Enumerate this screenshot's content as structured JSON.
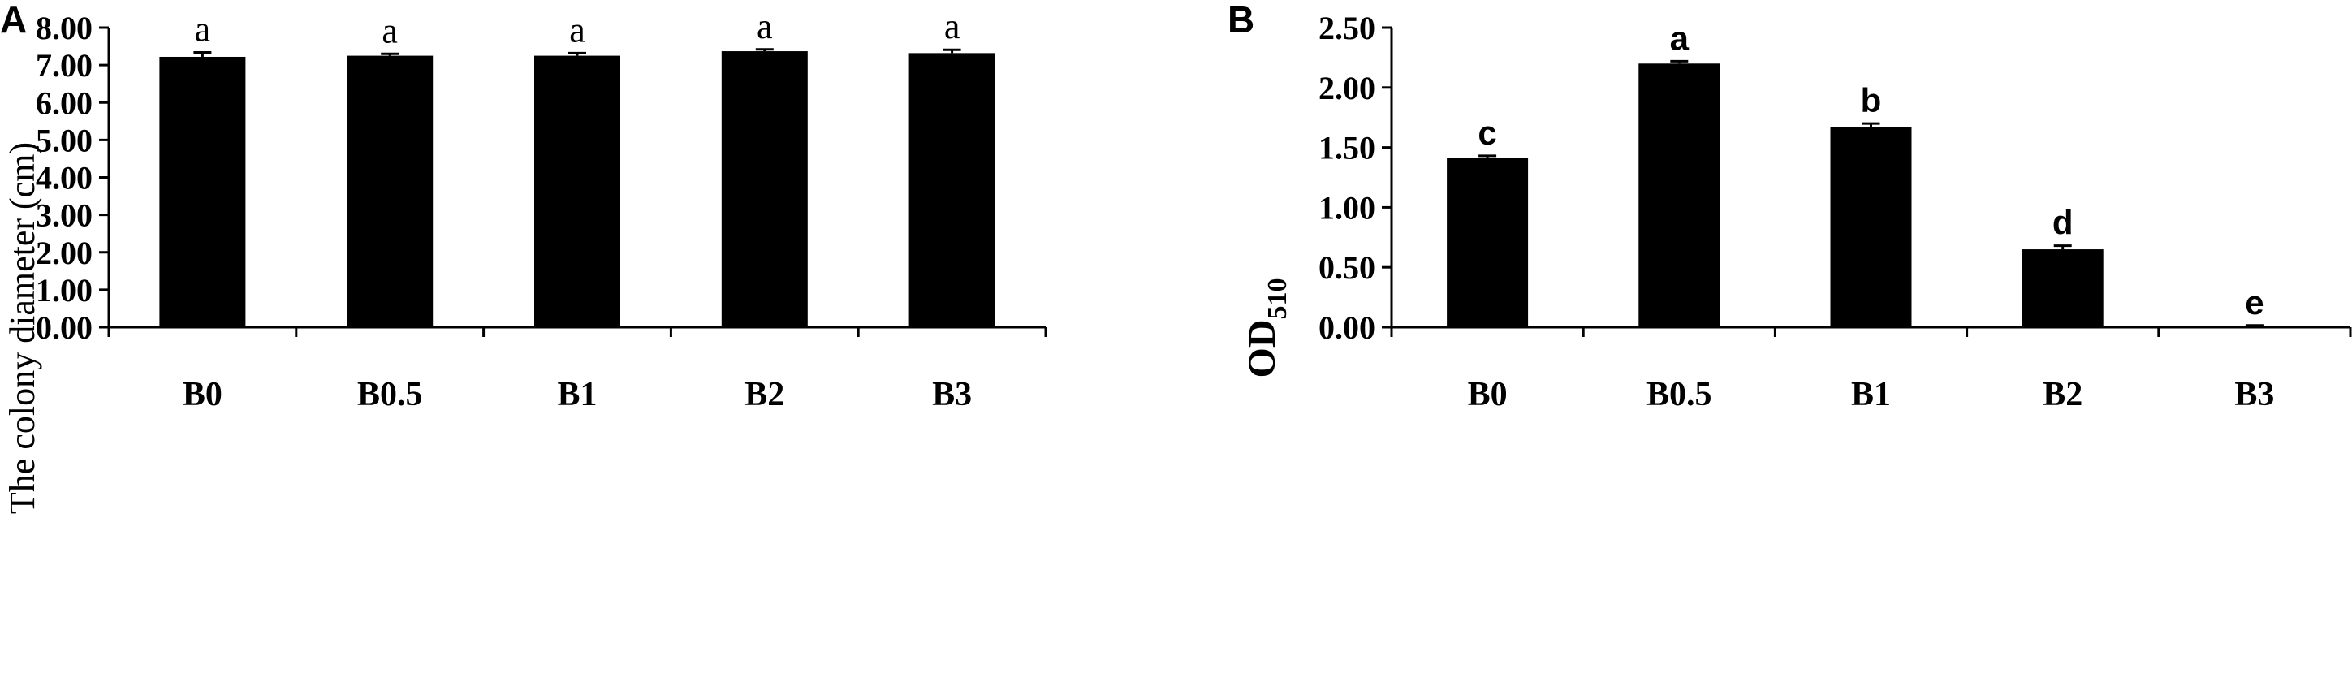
{
  "chart_data": [
    {
      "type": "bar",
      "panel": "A",
      "title": "",
      "xlabel": "",
      "ylabel": "The colony diameter (cm)",
      "ylim": [
        0,
        8
      ],
      "yticks": [
        "0.00",
        "1.00",
        "2.00",
        "3.00",
        "4.00",
        "5.00",
        "6.00",
        "7.00",
        "8.00"
      ],
      "categories": [
        "B0",
        "B0.5",
        "B1",
        "B2",
        "B3"
      ],
      "values": [
        7.22,
        7.25,
        7.25,
        7.37,
        7.32
      ],
      "errors": [
        0.12,
        0.05,
        0.07,
        0.05,
        0.09
      ],
      "labels": [
        "a",
        "a",
        "a",
        "a",
        "a"
      ],
      "bar_color": "#000000",
      "grid": false
    },
    {
      "type": "bar",
      "panel": "B",
      "title": "",
      "xlabel": "",
      "ylabel": "OD",
      "ylabel_subscript": "510",
      "ylim": [
        0,
        2.5
      ],
      "yticks": [
        "0.00",
        "0.50",
        "1.00",
        "1.50",
        "2.00",
        "2.50"
      ],
      "categories": [
        "B0",
        "B0.5",
        "B1",
        "B2",
        "B3"
      ],
      "values": [
        1.41,
        2.2,
        1.67,
        0.65,
        0.01
      ],
      "errors": [
        0.02,
        0.02,
        0.03,
        0.03,
        0.005
      ],
      "labels": [
        "c",
        "a",
        "b",
        "d",
        "e"
      ],
      "bar_color": "#000000",
      "grid": false
    }
  ]
}
